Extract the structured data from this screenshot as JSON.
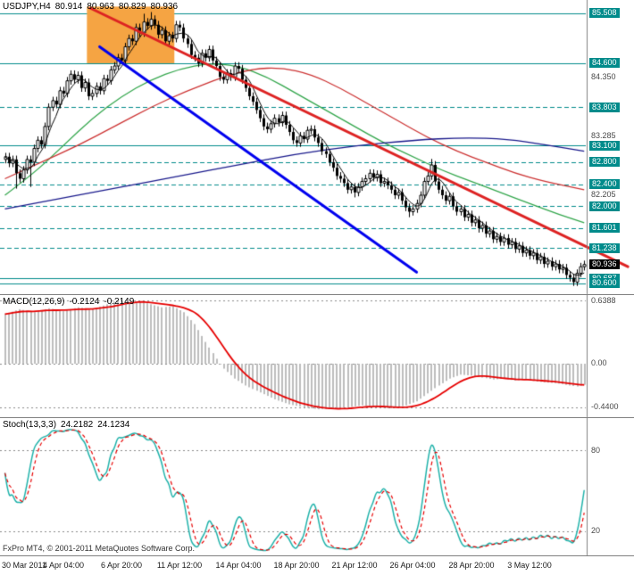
{
  "header": {
    "symbol": "USDJPY,H4",
    "open": "80.914",
    "high": "80.963",
    "low": "80.829",
    "close": "80.936"
  },
  "footer": {
    "text": "FxPro MT4, © 2001-2011 MetaQuotes Software Corp."
  },
  "colors": {
    "level": "#008B8B",
    "candle_up": "#FFFFFF",
    "candle_down": "#000000",
    "trend_red": "#DD2222",
    "trend_blue": "#0000EE",
    "ma_green": "#33A64C",
    "ma_red": "#CC3333",
    "ma_navy": "#1A1A8C",
    "ma_black": "#000000",
    "hist": "#BDBDBD",
    "signal": "#E60000",
    "stoch_main": "#20B2AA",
    "stoch_signal": "#E60000",
    "rect": "#F5A443",
    "axis_line": "#808080",
    "grid": "#8A8A8A"
  },
  "chart_data": {
    "type": "candlestick",
    "title": "USDJPY,H4 80.914 80.963 80.829 80.936",
    "x_labels": [
      {
        "bar": 1,
        "label": "30 Mar 2011"
      },
      {
        "bar": 16,
        "label": "4 Apr 04:00"
      },
      {
        "bar": 32,
        "label": "6 Apr 20:00"
      },
      {
        "bar": 48,
        "label": "11 Apr 12:00"
      },
      {
        "bar": 64,
        "label": "14 Apr 04:00"
      },
      {
        "bar": 80,
        "label": "18 Apr 20:00"
      },
      {
        "bar": 96,
        "label": "21 Apr 12:00"
      },
      {
        "bar": 112,
        "label": "26 Apr 04:00"
      },
      {
        "bar": 128,
        "label": "28 Apr 20:00"
      },
      {
        "bar": 144,
        "label": "3 May 12:00"
      }
    ],
    "price": {
      "range": [
        85.75,
        80.4
      ],
      "first_open": 82.85,
      "wick": 0.07,
      "closes": [
        82.9,
        82.78,
        82.85,
        82.6,
        82.5,
        82.66,
        82.85,
        82.8,
        83.05,
        83.2,
        83.12,
        83.45,
        83.8,
        83.92,
        83.85,
        84.1,
        84.05,
        84.28,
        84.4,
        84.3,
        84.38,
        84.15,
        84.25,
        84.0,
        84.05,
        84.18,
        84.1,
        84.32,
        84.28,
        84.48,
        84.55,
        84.7,
        84.65,
        84.9,
        85.05,
        85.0,
        85.25,
        85.15,
        85.35,
        85.28,
        85.4,
        85.3,
        85.12,
        85.2,
        85.0,
        85.1,
        85.05,
        85.3,
        85.25,
        85.05,
        84.95,
        84.75,
        84.7,
        84.6,
        84.78,
        84.7,
        84.85,
        84.65,
        84.55,
        84.35,
        84.3,
        84.42,
        84.35,
        84.55,
        84.5,
        84.3,
        84.15,
        84.0,
        83.9,
        83.75,
        83.6,
        83.45,
        83.4,
        83.5,
        83.6,
        83.52,
        83.65,
        83.48,
        83.35,
        83.2,
        83.15,
        83.28,
        83.22,
        83.38,
        83.4,
        83.25,
        83.15,
        83.0,
        82.95,
        82.8,
        82.7,
        82.55,
        82.5,
        82.42,
        82.3,
        82.35,
        82.25,
        82.35,
        82.45,
        82.5,
        82.6,
        82.52,
        82.58,
        82.42,
        82.45,
        82.38,
        82.3,
        82.2,
        82.25,
        82.1,
        81.98,
        81.9,
        81.95,
        82.05,
        82.2,
        82.45,
        82.55,
        82.75,
        82.45,
        82.3,
        82.2,
        82.1,
        82.18,
        82.0,
        81.9,
        81.95,
        81.8,
        81.85,
        81.7,
        81.75,
        81.6,
        81.65,
        81.5,
        81.55,
        81.4,
        81.45,
        81.35,
        81.42,
        81.3,
        81.35,
        81.22,
        81.28,
        81.15,
        81.2,
        81.1,
        81.15,
        81.02,
        81.08,
        80.95,
        81.0,
        80.9,
        80.95,
        80.85,
        80.88,
        80.75,
        80.7,
        80.62,
        80.78,
        80.9,
        80.94
      ],
      "spikes": {
        "3": {
          "low": 82.32
        },
        "7": {
          "low": 82.35
        },
        "38": {
          "high": 85.5
        },
        "40": {
          "high": 85.53
        },
        "96": {
          "low": 82.16
        },
        "111": {
          "low": 81.8
        },
        "117": {
          "high": 82.86
        },
        "130": {
          "low": 81.52
        },
        "156": {
          "low": 80.55
        }
      },
      "levels": [
        {
          "price": 85.508,
          "label": "85.508",
          "dash": false
        },
        {
          "price": 84.6,
          "label": "84.600",
          "dash": false
        },
        {
          "price": 83.803,
          "label": "83.803",
          "dash": true
        },
        {
          "price": 83.1,
          "label": "83.100",
          "dash": false
        },
        {
          "price": 82.8,
          "label": "82.800",
          "dash": true
        },
        {
          "price": 82.4,
          "label": "82.400",
          "dash": true
        },
        {
          "price": 82.0,
          "label": "82.000",
          "dash": true
        },
        {
          "price": 81.601,
          "label": "81.601",
          "dash": true
        },
        {
          "price": 81.238,
          "label": "81.238",
          "dash": true
        },
        {
          "price": 80.687,
          "label": "80.687",
          "dash": false
        },
        {
          "price": 80.6,
          "label": "80.600",
          "dash": false
        }
      ],
      "scale_labels": [
        {
          "price": 84.35,
          "label": "84.350"
        },
        {
          "price": 83.285,
          "label": "83.285"
        },
        {
          "price": 82.205,
          "label": "82.205"
        }
      ],
      "current": {
        "price": 80.936,
        "label": "80.936"
      },
      "rectangle": {
        "bar1": 23,
        "price1": 85.63,
        "bar2": 47,
        "price2": 84.6
      },
      "trendlines": [
        {
          "name": "downtrend-red",
          "color_key": "trend_red",
          "width": 3,
          "from": [
            23.5,
            85.6
          ],
          "to": [
            171,
            80.9
          ]
        },
        {
          "name": "downtrend-blue",
          "color_key": "trend_blue",
          "width": 3,
          "from": [
            26,
            84.9
          ],
          "to": [
            113,
            80.8
          ]
        }
      ],
      "ma_curves": [
        {
          "name": "ma-green",
          "color_key": "ma_green",
          "width": 1.3,
          "points": [
            [
              0,
              82.2
            ],
            [
              8,
              82.6
            ],
            [
              16,
              83.1
            ],
            [
              24,
              83.6
            ],
            [
              32,
              84.0
            ],
            [
              40,
              84.3
            ],
            [
              48,
              84.5
            ],
            [
              56,
              84.6
            ],
            [
              64,
              84.55
            ],
            [
              72,
              84.35
            ],
            [
              80,
              84.05
            ],
            [
              88,
              83.75
            ],
            [
              96,
              83.45
            ],
            [
              104,
              83.15
            ],
            [
              112,
              82.9
            ],
            [
              120,
              82.65
            ],
            [
              128,
              82.45
            ],
            [
              136,
              82.25
            ],
            [
              144,
              82.05
            ],
            [
              152,
              81.85
            ],
            [
              159,
              81.7
            ]
          ]
        },
        {
          "name": "ma-red",
          "color_key": "ma_red",
          "width": 1.3,
          "points": [
            [
              0,
              82.5
            ],
            [
              10,
              82.8
            ],
            [
              20,
              83.1
            ],
            [
              30,
              83.45
            ],
            [
              40,
              83.8
            ],
            [
              50,
              84.1
            ],
            [
              60,
              84.35
            ],
            [
              68,
              84.5
            ],
            [
              76,
              84.52
            ],
            [
              84,
              84.4
            ],
            [
              92,
              84.15
            ],
            [
              100,
              83.85
            ],
            [
              108,
              83.55
            ],
            [
              116,
              83.25
            ],
            [
              124,
              83.0
            ],
            [
              132,
              82.8
            ],
            [
              140,
              82.6
            ],
            [
              148,
              82.45
            ],
            [
              159,
              82.3
            ]
          ]
        },
        {
          "name": "ma-navy",
          "color_key": "ma_navy",
          "width": 1.3,
          "points": [
            [
              0,
              81.95
            ],
            [
              16,
              82.15
            ],
            [
              32,
              82.35
            ],
            [
              48,
              82.55
            ],
            [
              64,
              82.75
            ],
            [
              80,
              82.95
            ],
            [
              96,
              83.1
            ],
            [
              112,
              83.2
            ],
            [
              126,
              83.25
            ],
            [
              138,
              83.22
            ],
            [
              148,
              83.12
            ],
            [
              159,
              83.0
            ]
          ]
        }
      ],
      "fast_ma_period": 5
    },
    "macd": {
      "title": "MACD(12,26,9)",
      "value_main": "-0.2124",
      "value_signal": "-0.2149",
      "range": [
        0.693,
        -0.54
      ],
      "grid": [
        {
          "v": 0.6388,
          "label": "0.6388"
        },
        {
          "v": 0,
          "label": "0.00"
        },
        {
          "v": -0.44,
          "label": "-0.4400"
        }
      ],
      "signal_period": 9,
      "keypoints": [
        [
          0,
          0.5
        ],
        [
          4,
          0.55
        ],
        [
          8,
          0.52
        ],
        [
          12,
          0.56
        ],
        [
          16,
          0.53
        ],
        [
          20,
          0.57
        ],
        [
          24,
          0.55
        ],
        [
          28,
          0.6
        ],
        [
          31,
          0.6388
        ],
        [
          34,
          0.61
        ],
        [
          37,
          0.63
        ],
        [
          40,
          0.6
        ],
        [
          43,
          0.57
        ],
        [
          46,
          0.58
        ],
        [
          49,
          0.52
        ],
        [
          52,
          0.4
        ],
        [
          55,
          0.22
        ],
        [
          58,
          0.05
        ],
        [
          60,
          -0.05
        ],
        [
          63,
          -0.15
        ],
        [
          66,
          -0.22
        ],
        [
          70,
          -0.29
        ],
        [
          74,
          -0.36
        ],
        [
          78,
          -0.41
        ],
        [
          82,
          -0.44
        ],
        [
          86,
          -0.46
        ],
        [
          90,
          -0.455
        ],
        [
          94,
          -0.44
        ],
        [
          98,
          -0.42
        ],
        [
          102,
          -0.44
        ],
        [
          106,
          -0.45
        ],
        [
          110,
          -0.42
        ],
        [
          113,
          -0.38
        ],
        [
          116,
          -0.3
        ],
        [
          119,
          -0.22
        ],
        [
          122,
          -0.15
        ],
        [
          125,
          -0.11
        ],
        [
          128,
          -0.12
        ],
        [
          131,
          -0.14
        ],
        [
          134,
          -0.16
        ],
        [
          137,
          -0.15
        ],
        [
          140,
          -0.17
        ],
        [
          143,
          -0.16
        ],
        [
          146,
          -0.18
        ],
        [
          149,
          -0.19
        ],
        [
          152,
          -0.2
        ],
        [
          155,
          -0.22
        ],
        [
          157,
          -0.23
        ],
        [
          159,
          -0.2124
        ]
      ]
    },
    "stoch": {
      "title": "Stoch(13,3,3)",
      "value_main": "24.2182",
      "value_signal": "24.1234",
      "range": [
        104,
        2
      ],
      "grid": [
        {
          "v": 80,
          "label": "80"
        },
        {
          "v": 20,
          "label": "20"
        }
      ],
      "k_period": 13,
      "slowing": 3,
      "d_period": 3
    }
  }
}
